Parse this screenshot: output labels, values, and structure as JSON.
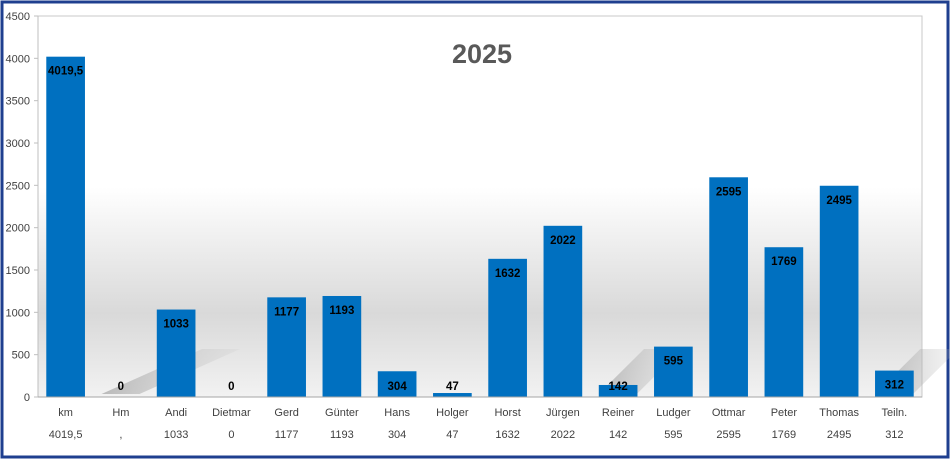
{
  "chart_data": {
    "type": "bar",
    "title": "2025",
    "categories": [
      "km",
      "Hm",
      "Andi",
      "Dietmar",
      "Gerd",
      "Günter",
      "Hans",
      "Holger",
      "Horst",
      "Jürgen",
      "Reiner",
      "Ludger",
      "Ottmar",
      "Peter",
      "Thomas",
      "Teiln."
    ],
    "values": [
      4019.5,
      0,
      1033,
      0,
      1177,
      1193,
      304,
      47,
      1632,
      2022,
      142,
      595,
      2595,
      1769,
      2495,
      312
    ],
    "data_labels": [
      "4019,5",
      "0",
      "1033",
      "0",
      "1177",
      "1193",
      "304",
      "47",
      "1632",
      "2022",
      "142",
      "595",
      "2595",
      "1769",
      "2495",
      "312"
    ],
    "table_values": [
      "4019,5",
      ",",
      "1033",
      "0",
      "1177",
      "1193",
      "304",
      "47",
      "1632",
      "2022",
      "142",
      "595",
      "2595",
      "1769",
      "2495",
      "312"
    ],
    "ylim": [
      0,
      4500
    ],
    "yticks": [
      "0",
      "500",
      "1000",
      "1500",
      "2000",
      "2500",
      "3000",
      "3500",
      "4000",
      "4500"
    ],
    "xlabel": "",
    "ylabel": "",
    "grid": false,
    "legend": "none",
    "colors": {
      "bar": "#0070C0",
      "border": "#1F3F8F",
      "title": "#595959",
      "label": "#000000",
      "tick": "#404040"
    }
  }
}
